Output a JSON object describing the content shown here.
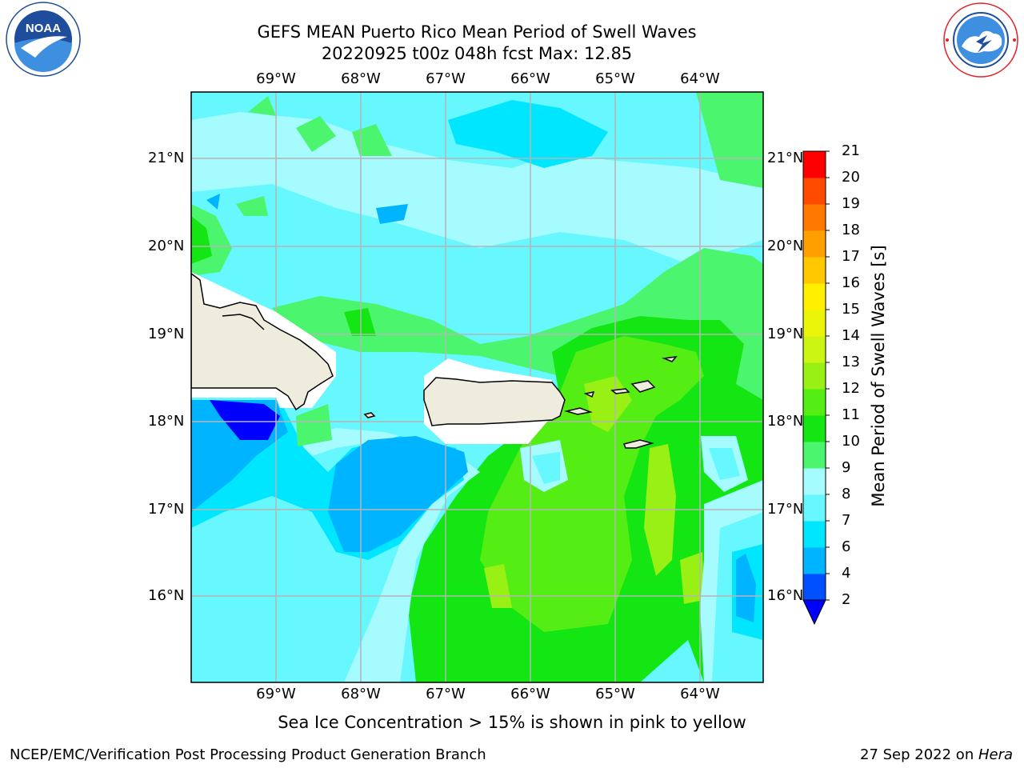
{
  "header": {
    "title_line1": "GEFS MEAN Puerto Rico Mean Period of Swell Waves",
    "title_line2": "20220925 t00z 048h fcst   Max: 12.85"
  },
  "map": {
    "lon_labels": [
      "69°W",
      "68°W",
      "67°W",
      "66°W",
      "65°W",
      "64°W"
    ],
    "lat_labels": [
      "21°N",
      "20°N",
      "19°N",
      "18°N",
      "17°N",
      "16°N"
    ],
    "lon_range": [
      -70.0,
      -63.26
    ],
    "lat_range": [
      15.0,
      21.75
    ]
  },
  "colorbar": {
    "title": "Mean Period of Swell Waves [s]",
    "levels": [
      "2",
      "4",
      "6",
      "7",
      "8",
      "9",
      "10",
      "11",
      "12",
      "13",
      "14",
      "15",
      "16",
      "17",
      "18",
      "19",
      "20",
      "21"
    ],
    "colors": [
      "#0050ff",
      "#00b4ff",
      "#00e6ff",
      "#66f7ff",
      "#a6fbff",
      "#4cf56e",
      "#14e614",
      "#55ee14",
      "#99f014",
      "#cdf514",
      "#eaf50a",
      "#fff000",
      "#ffc800",
      "#ffa000",
      "#ff7800",
      "#ff4b00",
      "#ff0000"
    ],
    "under_color": "#0000ff"
  },
  "palette": {
    "land": "#eeecdc",
    "grid": "#b5b5b5",
    "noaa_blue": "#1e4d9b",
    "nws_red": "#e3222b"
  },
  "logos": {
    "noaa_name": "noaa-logo",
    "noaa_text": "NOAA",
    "nws_name": "nws-logo"
  },
  "footer": {
    "note": "Sea Ice Concentration > 15% is shown in pink to yellow",
    "left": "NCEP/EMC/Verification Post Processing Product Generation Branch",
    "right_date": "27 Sep 2022 on ",
    "right_machine": "Hera"
  }
}
